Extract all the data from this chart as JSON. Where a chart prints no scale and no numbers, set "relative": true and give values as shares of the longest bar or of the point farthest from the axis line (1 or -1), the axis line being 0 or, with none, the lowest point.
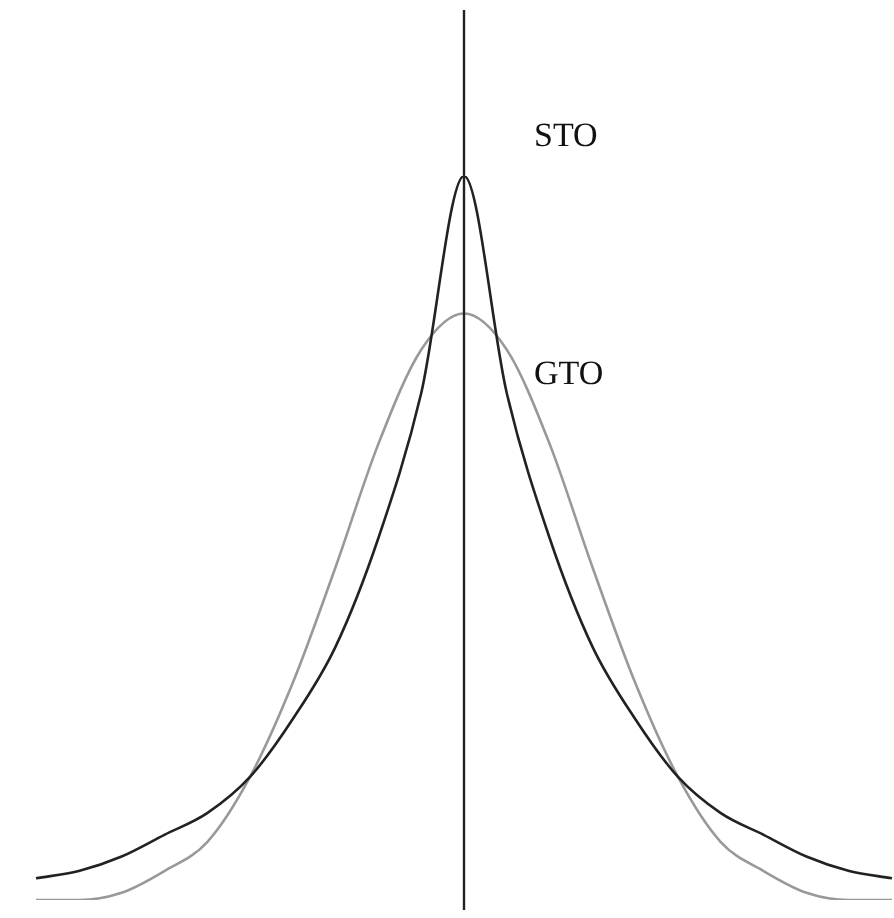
{
  "chart_data": {
    "type": "line",
    "relative": true,
    "legend": false,
    "grid": false,
    "marker": "none",
    "categories": [
      null,
      null,
      null,
      null,
      null,
      null,
      null,
      null,
      null,
      null,
      null,
      null,
      null,
      null,
      null,
      null,
      null,
      null,
      null,
      null,
      null
    ],
    "series": [
      {
        "name": "STO",
        "color": "#222222",
        "values": [
          0.03,
          0.04,
          0.06,
          0.09,
          0.12,
          0.17,
          0.25,
          0.35,
          0.5,
          0.7,
          1,
          0.7,
          0.5,
          0.35,
          0.25,
          0.17,
          0.12,
          0.09,
          0.06,
          0.04,
          0.03
        ]
      },
      {
        "name": "GTO",
        "color": "#999999",
        "values": [
          0,
          0,
          0.01,
          0.04,
          0.08,
          0.17,
          0.3,
          0.46,
          0.63,
          0.76,
          0.81,
          0.76,
          0.63,
          0.46,
          0.3,
          0.17,
          0.08,
          0.04,
          0.01,
          0,
          0
        ]
      }
    ]
  }
}
